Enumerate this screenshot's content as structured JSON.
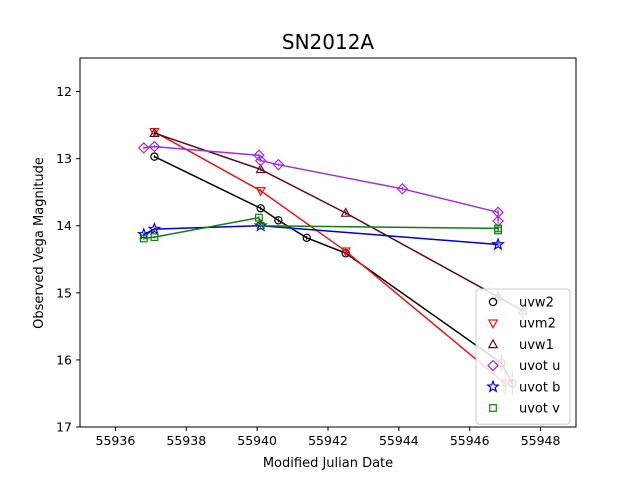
{
  "chart_data": {
    "type": "scatter",
    "title": "SN2012A",
    "xlabel": "Modified Julian Date",
    "ylabel": "Observed Vega Magnitude",
    "xlim": [
      55935,
      55949
    ],
    "ylim": [
      17,
      11.5
    ],
    "y_inverted": true,
    "x_ticks": [
      "55936",
      "55938",
      "55940",
      "55942",
      "55944",
      "55946",
      "55948"
    ],
    "y_ticks": [
      "12",
      "13",
      "14",
      "15",
      "16",
      "17"
    ],
    "grid": false,
    "legend_position": "lower-right",
    "series": [
      {
        "name": "uvw2",
        "color": "#000000",
        "marker": "circle",
        "x": [
          55937.1,
          55940.1,
          55940.6,
          55941.4,
          55942.5,
          55946.9,
          55947.2
        ],
        "y": [
          12.97,
          13.74,
          13.92,
          14.18,
          14.41,
          16.05,
          16.35
        ],
        "yerr": [
          0.02,
          0.03,
          0.03,
          0.03,
          0.03,
          0.13,
          0.18
        ]
      },
      {
        "name": "uvm2",
        "color": "#e31a1c",
        "marker": "triangle-down",
        "x": [
          55937.1,
          55940.1,
          55942.5,
          55947.0
        ],
        "y": [
          12.6,
          13.48,
          14.38,
          16.35
        ],
        "yerr": [
          0.02,
          0.03,
          0.04,
          0.18
        ]
      },
      {
        "name": "uvw1",
        "color": "#5c0a1e",
        "marker": "triangle-up",
        "x": [
          55937.1,
          55940.1,
          55942.5,
          55946.8,
          55947.5
        ],
        "y": [
          12.62,
          13.16,
          13.81,
          15.06,
          15.27
        ],
        "yerr": [
          0.02,
          0.03,
          0.03,
          0.1,
          0.12
        ]
      },
      {
        "name": "uvot u",
        "color": "#9b30d9",
        "marker": "diamond",
        "x": [
          55936.8,
          55937.1,
          55940.05,
          55940.1,
          55940.6,
          55944.1,
          55946.8,
          55946.8
        ],
        "y": [
          12.84,
          12.82,
          12.95,
          13.03,
          13.09,
          13.45,
          13.8,
          13.93
        ],
        "yerr": [
          0.02,
          0.02,
          0.02,
          0.02,
          0.02,
          0.03,
          0.04,
          0.04
        ]
      },
      {
        "name": "uvot b",
        "color": "#0000cc",
        "marker": "star",
        "x": [
          55936.8,
          55937.1,
          55940.1,
          55946.8
        ],
        "y": [
          14.13,
          14.05,
          14.0,
          14.28
        ],
        "yerr": [
          0.02,
          0.02,
          0.02,
          0.03
        ]
      },
      {
        "name": "uvot v",
        "color": "#108010",
        "marker": "square",
        "x": [
          55936.8,
          55937.1,
          55940.05,
          55940.1,
          55946.8,
          55946.8
        ],
        "y": [
          14.19,
          14.17,
          13.88,
          14.0,
          14.04,
          14.07
        ],
        "yerr": [
          0.02,
          0.02,
          0.03,
          0.03,
          0.03,
          0.03
        ]
      }
    ]
  }
}
